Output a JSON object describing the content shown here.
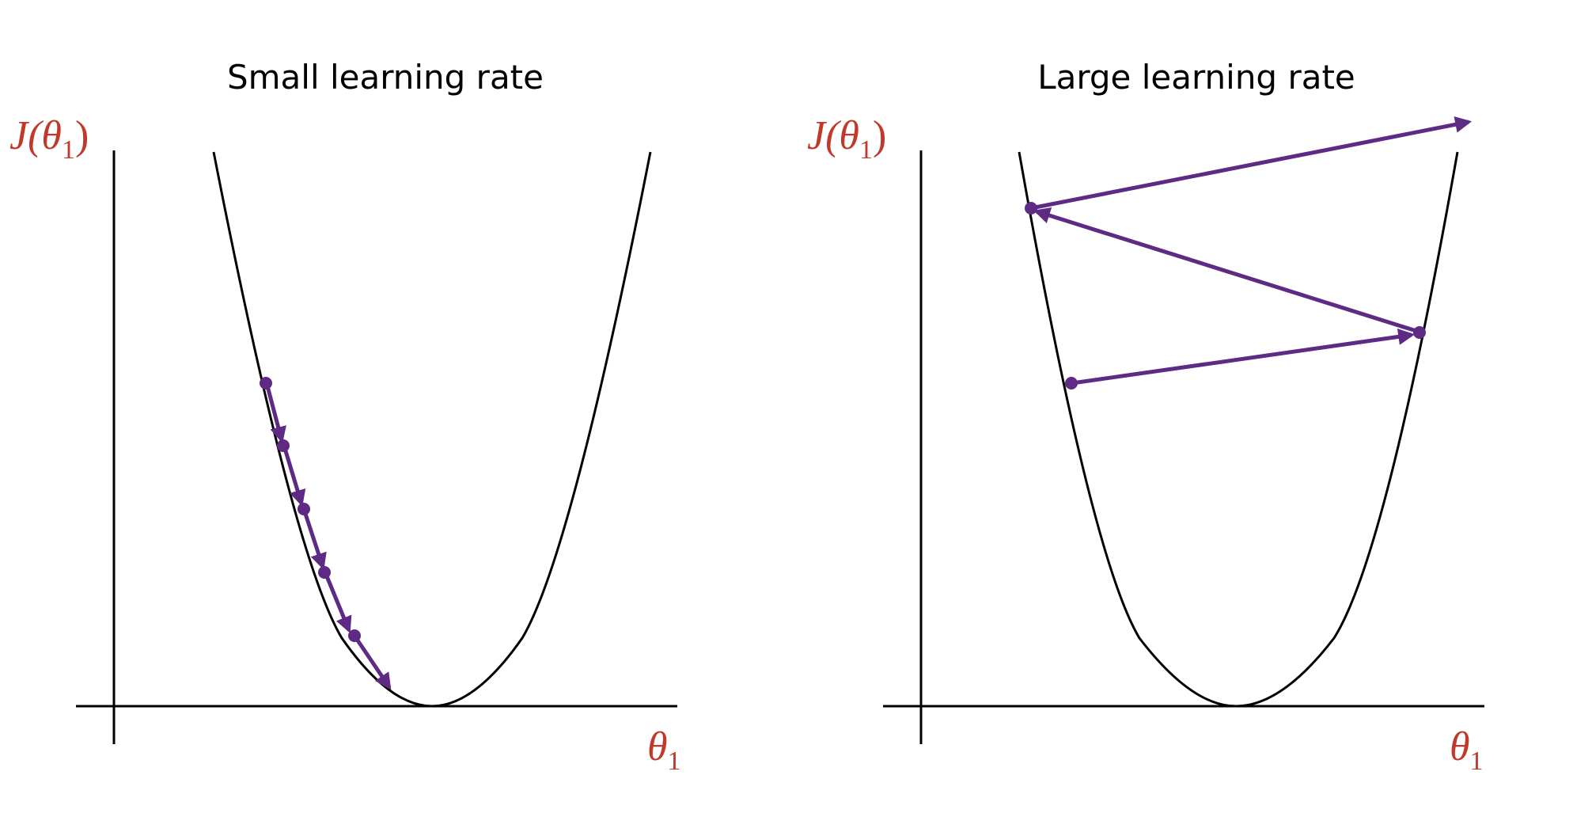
{
  "panels": [
    {
      "title": "Small learning rate",
      "y_label": {
        "func": "J(",
        "var": "θ",
        "sub": "1",
        "close": ")"
      },
      "x_label": {
        "var": "θ",
        "sub": "1"
      }
    },
    {
      "title": "Large learning rate",
      "y_label": {
        "func": "J(",
        "var": "θ",
        "sub": "1",
        "close": ")"
      },
      "x_label": {
        "var": "θ",
        "sub": "1"
      }
    }
  ],
  "colors": {
    "label": "#c0392b",
    "path": "#5e2a84",
    "curve": "#000000"
  },
  "icons": [
    "arrowhead-marker"
  ]
}
